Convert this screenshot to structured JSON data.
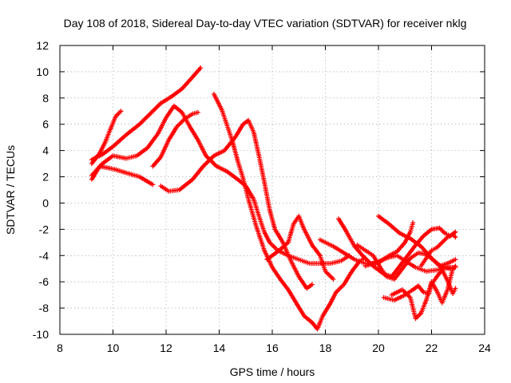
{
  "chart_data": {
    "type": "scatter",
    "title": "Day 108 of 2018, Sidereal Day-to-day VTEC variation (SDTVAR) for receiver nklg",
    "xlabel": "GPS time / hours",
    "ylabel": "SDTVAR / TECUs",
    "xlim": [
      8,
      24
    ],
    "ylim": [
      -10,
      12
    ],
    "xticks": [
      8,
      10,
      12,
      14,
      16,
      18,
      20,
      22,
      24
    ],
    "yticks": [
      -10,
      -8,
      -6,
      -4,
      -2,
      0,
      2,
      4,
      6,
      8,
      10,
      12
    ],
    "grid": true,
    "marker": "plus",
    "color": "#ff0000",
    "tracks": [
      {
        "points": [
          [
            9.2,
            3.3
          ],
          [
            9.6,
            3.7
          ],
          [
            10.0,
            4.3
          ],
          [
            10.5,
            5.2
          ],
          [
            11.0,
            6.0
          ],
          [
            11.4,
            6.8
          ],
          [
            11.8,
            7.6
          ],
          [
            12.2,
            8.1
          ],
          [
            12.6,
            8.7
          ],
          [
            13.0,
            9.6
          ],
          [
            13.3,
            10.3
          ]
        ]
      },
      {
        "points": [
          [
            9.2,
            3.0
          ],
          [
            9.5,
            3.8
          ],
          [
            9.7,
            4.6
          ],
          [
            9.9,
            5.6
          ],
          [
            10.1,
            6.6
          ],
          [
            10.3,
            7.0
          ]
        ]
      },
      {
        "points": [
          [
            9.2,
            2.1
          ],
          [
            9.6,
            3.0
          ],
          [
            10.0,
            3.6
          ],
          [
            10.5,
            3.4
          ],
          [
            10.9,
            3.6
          ],
          [
            11.3,
            4.2
          ],
          [
            11.7,
            5.3
          ],
          [
            12.0,
            6.5
          ],
          [
            12.3,
            7.4
          ],
          [
            12.6,
            6.9
          ],
          [
            12.9,
            5.8
          ],
          [
            13.2,
            4.8
          ],
          [
            13.5,
            3.6
          ],
          [
            13.9,
            2.8
          ],
          [
            14.3,
            2.4
          ],
          [
            14.7,
            1.8
          ],
          [
            15.0,
            1.3
          ],
          [
            15.3,
            0.3
          ],
          [
            15.5,
            -1.0
          ],
          [
            15.7,
            -2.2
          ],
          [
            15.9,
            -3.0
          ],
          [
            16.2,
            -3.6
          ],
          [
            16.6,
            -4.0
          ],
          [
            17.0,
            -4.3
          ],
          [
            17.4,
            -4.6
          ],
          [
            17.8,
            -4.6
          ],
          [
            18.2,
            -4.6
          ],
          [
            18.6,
            -4.4
          ],
          [
            18.9,
            -4.0
          ]
        ]
      },
      {
        "points": [
          [
            9.2,
            1.8
          ],
          [
            9.5,
            2.8
          ],
          [
            10.0,
            2.6
          ],
          [
            10.5,
            2.3
          ],
          [
            11.0,
            2.0
          ],
          [
            11.5,
            1.4
          ]
        ]
      },
      {
        "points": [
          [
            11.5,
            2.8
          ],
          [
            11.8,
            3.5
          ],
          [
            12.1,
            4.8
          ],
          [
            12.4,
            5.8
          ],
          [
            12.7,
            6.4
          ],
          [
            13.0,
            6.8
          ],
          [
            13.2,
            6.9
          ]
        ]
      },
      {
        "points": [
          [
            11.8,
            1.3
          ],
          [
            12.1,
            0.9
          ],
          [
            12.5,
            1.0
          ],
          [
            13.0,
            1.8
          ],
          [
            13.4,
            2.8
          ],
          [
            13.8,
            3.6
          ],
          [
            14.2,
            4.0
          ],
          [
            14.6,
            5.0
          ],
          [
            14.9,
            6.0
          ],
          [
            15.1,
            6.3
          ],
          [
            15.3,
            5.4
          ],
          [
            15.5,
            3.6
          ],
          [
            15.7,
            1.6
          ],
          [
            15.9,
            -0.5
          ],
          [
            16.1,
            -2.0
          ],
          [
            16.4,
            -3.0
          ],
          [
            16.7,
            -4.4
          ],
          [
            17.0,
            -5.6
          ],
          [
            17.3,
            -6.5
          ],
          [
            17.5,
            -6.2
          ]
        ]
      },
      {
        "points": [
          [
            13.8,
            8.3
          ],
          [
            14.1,
            7.1
          ],
          [
            14.3,
            5.9
          ],
          [
            14.5,
            4.7
          ],
          [
            14.7,
            3.2
          ],
          [
            14.9,
            1.9
          ],
          [
            15.1,
            0.3
          ],
          [
            15.4,
            -1.8
          ],
          [
            15.7,
            -3.6
          ],
          [
            16.0,
            -4.9
          ],
          [
            16.3,
            -5.8
          ],
          [
            16.6,
            -6.6
          ],
          [
            16.9,
            -7.6
          ],
          [
            17.2,
            -8.6
          ],
          [
            17.5,
            -9.1
          ],
          [
            17.7,
            -9.6
          ],
          [
            17.9,
            -8.6
          ],
          [
            18.2,
            -7.6
          ],
          [
            18.4,
            -6.8
          ],
          [
            18.7,
            -6.2
          ],
          [
            19.0,
            -5.2
          ],
          [
            19.3,
            -4.4
          ],
          [
            19.5,
            -4.2
          ]
        ]
      },
      {
        "points": [
          [
            15.8,
            -4.3
          ],
          [
            16.2,
            -3.7
          ],
          [
            16.6,
            -3.0
          ],
          [
            16.8,
            -1.6
          ],
          [
            17.0,
            -1.0
          ],
          [
            17.2,
            -2.0
          ],
          [
            17.5,
            -3.2
          ],
          [
            17.8,
            -4.0
          ],
          [
            18.0,
            -5.2
          ],
          [
            18.3,
            -5.8
          ]
        ]
      },
      {
        "points": [
          [
            17.8,
            -2.8
          ],
          [
            18.3,
            -3.3
          ],
          [
            18.7,
            -3.8
          ],
          [
            19.1,
            -4.3
          ],
          [
            19.5,
            -4.6
          ],
          [
            19.9,
            -4.6
          ],
          [
            20.3,
            -4.2
          ],
          [
            20.7,
            -4.0
          ],
          [
            21.0,
            -4.4
          ],
          [
            21.4,
            -4.9
          ],
          [
            21.8,
            -5.2
          ],
          [
            22.2,
            -5.1
          ],
          [
            22.6,
            -4.9
          ],
          [
            22.9,
            -4.9
          ]
        ]
      },
      {
        "points": [
          [
            18.5,
            -1.2
          ],
          [
            18.8,
            -2.2
          ],
          [
            19.1,
            -3.3
          ],
          [
            19.4,
            -4.0
          ],
          [
            19.8,
            -4.8
          ],
          [
            20.2,
            -5.4
          ],
          [
            20.5,
            -5.6
          ],
          [
            20.8,
            -4.8
          ],
          [
            21.1,
            -4.0
          ],
          [
            21.4,
            -3.2
          ],
          [
            21.7,
            -2.5
          ],
          [
            22.0,
            -2.0
          ],
          [
            22.3,
            -1.9
          ],
          [
            22.5,
            -2.3
          ],
          [
            22.7,
            -2.5
          ],
          [
            22.9,
            -2.2
          ]
        ]
      },
      {
        "points": [
          [
            19.2,
            -3.2
          ],
          [
            19.5,
            -3.6
          ],
          [
            19.8,
            -4.0
          ],
          [
            20.1,
            -5.0
          ],
          [
            20.3,
            -5.6
          ],
          [
            20.6,
            -5.8
          ],
          [
            20.9,
            -5.0
          ],
          [
            21.2,
            -4.2
          ],
          [
            21.5,
            -3.8
          ],
          [
            21.8,
            -3.9
          ],
          [
            22.1,
            -4.4
          ],
          [
            22.4,
            -4.9
          ],
          [
            22.7,
            -5.0
          ]
        ]
      },
      {
        "points": [
          [
            20.0,
            -1.0
          ],
          [
            20.4,
            -1.6
          ],
          [
            20.8,
            -2.3
          ],
          [
            21.2,
            -2.7
          ],
          [
            21.6,
            -3.3
          ],
          [
            22.0,
            -4.2
          ],
          [
            22.3,
            -4.8
          ],
          [
            22.6,
            -4.6
          ],
          [
            22.9,
            -4.3
          ]
        ]
      },
      {
        "points": [
          [
            19.5,
            -4.8
          ],
          [
            19.8,
            -4.6
          ],
          [
            20.1,
            -4.4
          ],
          [
            20.4,
            -4.0
          ],
          [
            20.7,
            -3.7
          ],
          [
            21.0,
            -3.0
          ],
          [
            21.2,
            -2.2
          ],
          [
            21.3,
            -1.5
          ]
        ]
      },
      {
        "points": [
          [
            20.2,
            -7.2
          ],
          [
            20.6,
            -7.4
          ],
          [
            21.0,
            -7.0
          ],
          [
            21.3,
            -6.6
          ],
          [
            21.5,
            -6.3
          ],
          [
            21.7,
            -6.8
          ],
          [
            21.9,
            -6.9
          ],
          [
            22.0,
            -6.2
          ],
          [
            22.2,
            -5.6
          ],
          [
            22.4,
            -5.1
          ],
          [
            22.6,
            -5.9
          ],
          [
            22.8,
            -6.9
          ],
          [
            22.9,
            -6.5
          ]
        ]
      },
      {
        "points": [
          [
            20.5,
            -7.0
          ],
          [
            20.9,
            -6.6
          ],
          [
            21.2,
            -7.2
          ],
          [
            21.4,
            -8.8
          ],
          [
            21.6,
            -8.4
          ],
          [
            21.8,
            -7.4
          ],
          [
            22.0,
            -6.0
          ],
          [
            22.2,
            -6.7
          ],
          [
            22.4,
            -7.6
          ],
          [
            22.6,
            -6.6
          ],
          [
            22.8,
            -5.0
          ],
          [
            22.9,
            -4.8
          ]
        ]
      },
      {
        "points": [
          [
            21.6,
            -4.8
          ],
          [
            21.8,
            -4.2
          ],
          [
            22.0,
            -3.6
          ],
          [
            22.2,
            -3.4
          ],
          [
            22.4,
            -3.0
          ],
          [
            22.6,
            -2.6
          ],
          [
            22.8,
            -2.4
          ],
          [
            22.9,
            -2.6
          ]
        ]
      }
    ]
  }
}
